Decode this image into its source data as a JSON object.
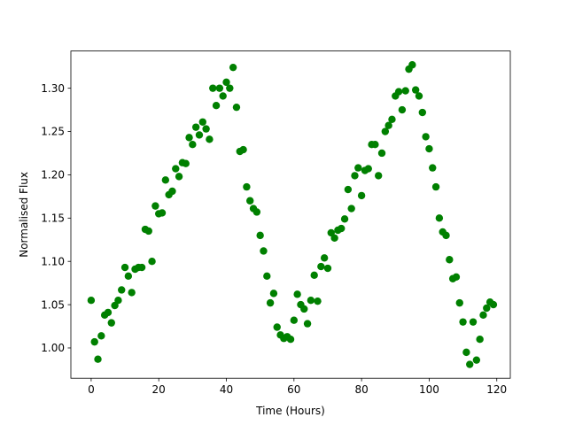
{
  "chart_data": {
    "type": "scatter",
    "xlabel": "Time (Hours)",
    "ylabel": "Normalised Flux",
    "xlim": [
      -6,
      124
    ],
    "ylim": [
      0.965,
      1.343
    ],
    "xticks": [
      0,
      20,
      40,
      60,
      80,
      100,
      120
    ],
    "yticks": [
      1.0,
      1.05,
      1.1,
      1.15,
      1.2,
      1.25,
      1.3
    ],
    "grid": false,
    "legend": "none",
    "marker_color": "#008000",
    "series": [
      {
        "points": [
          [
            0,
            1.055
          ],
          [
            1,
            1.007
          ],
          [
            2,
            0.987
          ],
          [
            3,
            1.014
          ],
          [
            4,
            1.038
          ],
          [
            5,
            1.041
          ],
          [
            6,
            1.029
          ],
          [
            7,
            1.049
          ],
          [
            8,
            1.055
          ],
          [
            9,
            1.067
          ],
          [
            10,
            1.093
          ],
          [
            11,
            1.083
          ],
          [
            12,
            1.064
          ],
          [
            13,
            1.091
          ],
          [
            14,
            1.093
          ],
          [
            15,
            1.093
          ],
          [
            16,
            1.137
          ],
          [
            17,
            1.135
          ],
          [
            18,
            1.1
          ],
          [
            19,
            1.164
          ],
          [
            20,
            1.155
          ],
          [
            21,
            1.156
          ],
          [
            22,
            1.194
          ],
          [
            23,
            1.177
          ],
          [
            24,
            1.181
          ],
          [
            25,
            1.207
          ],
          [
            26,
            1.198
          ],
          [
            27,
            1.214
          ],
          [
            28,
            1.213
          ],
          [
            29,
            1.243
          ],
          [
            30,
            1.235
          ],
          [
            31,
            1.255
          ],
          [
            32,
            1.246
          ],
          [
            33,
            1.261
          ],
          [
            34,
            1.253
          ],
          [
            35,
            1.241
          ],
          [
            36,
            1.3
          ],
          [
            37,
            1.28
          ],
          [
            38,
            1.3
          ],
          [
            39,
            1.291
          ],
          [
            40,
            1.307
          ],
          [
            41,
            1.3
          ],
          [
            42,
            1.324
          ],
          [
            43,
            1.278
          ],
          [
            44,
            1.227
          ],
          [
            45,
            1.229
          ],
          [
            46,
            1.186
          ],
          [
            47,
            1.17
          ],
          [
            48,
            1.161
          ],
          [
            49,
            1.157
          ],
          [
            50,
            1.13
          ],
          [
            51,
            1.112
          ],
          [
            52,
            1.083
          ],
          [
            53,
            1.052
          ],
          [
            54,
            1.063
          ],
          [
            55,
            1.024
          ],
          [
            56,
            1.015
          ],
          [
            57,
            1.011
          ],
          [
            58,
            1.013
          ],
          [
            59,
            1.01
          ],
          [
            60,
            1.032
          ],
          [
            61,
            1.062
          ],
          [
            62,
            1.05
          ],
          [
            63,
            1.045
          ],
          [
            64,
            1.028
          ],
          [
            65,
            1.055
          ],
          [
            66,
            1.084
          ],
          [
            67,
            1.054
          ],
          [
            68,
            1.094
          ],
          [
            69,
            1.104
          ],
          [
            70,
            1.092
          ],
          [
            71,
            1.133
          ],
          [
            72,
            1.127
          ],
          [
            73,
            1.136
          ],
          [
            74,
            1.138
          ],
          [
            75,
            1.149
          ],
          [
            76,
            1.183
          ],
          [
            77,
            1.161
          ],
          [
            78,
            1.199
          ],
          [
            79,
            1.208
          ],
          [
            80,
            1.176
          ],
          [
            81,
            1.205
          ],
          [
            82,
            1.207
          ],
          [
            83,
            1.235
          ],
          [
            84,
            1.235
          ],
          [
            85,
            1.199
          ],
          [
            86,
            1.225
          ],
          [
            87,
            1.25
          ],
          [
            88,
            1.257
          ],
          [
            89,
            1.264
          ],
          [
            90,
            1.291
          ],
          [
            91,
            1.296
          ],
          [
            92,
            1.275
          ],
          [
            93,
            1.297
          ],
          [
            94,
            1.322
          ],
          [
            95,
            1.327
          ],
          [
            96,
            1.298
          ],
          [
            97,
            1.291
          ],
          [
            98,
            1.272
          ],
          [
            99,
            1.244
          ],
          [
            100,
            1.23
          ],
          [
            101,
            1.208
          ],
          [
            102,
            1.186
          ],
          [
            103,
            1.15
          ],
          [
            104,
            1.134
          ],
          [
            105,
            1.13
          ],
          [
            106,
            1.102
          ],
          [
            107,
            1.08
          ],
          [
            108,
            1.082
          ],
          [
            109,
            1.052
          ],
          [
            110,
            1.03
          ],
          [
            111,
            0.995
          ],
          [
            112,
            0.981
          ],
          [
            113,
            1.03
          ],
          [
            114,
            0.986
          ],
          [
            115,
            1.01
          ],
          [
            116,
            1.038
          ],
          [
            117,
            1.046
          ],
          [
            118,
            1.053
          ],
          [
            119,
            1.05
          ]
        ]
      }
    ]
  }
}
